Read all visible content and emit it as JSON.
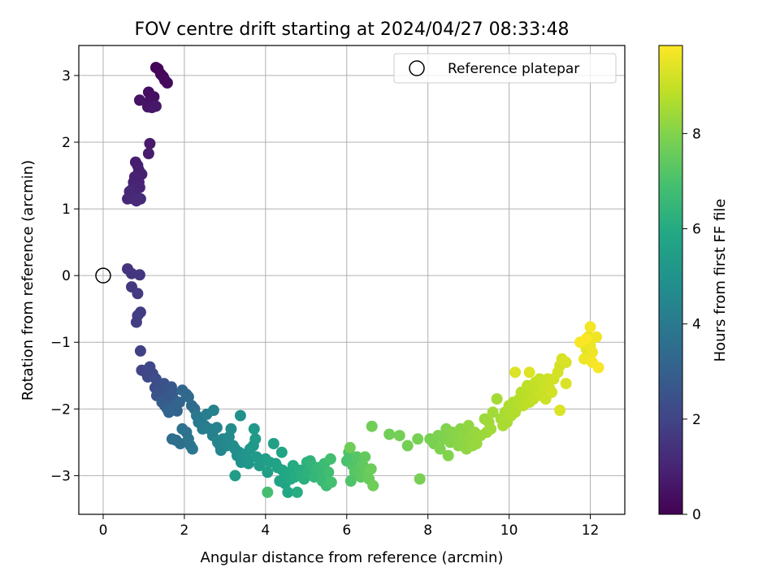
{
  "chart_data": {
    "type": "scatter",
    "title": "FOV centre drift starting at 2024/04/27 08:33:48",
    "xlabel": "Angular distance from reference (arcmin)",
    "ylabel": "Rotation from reference (arcmin)",
    "xlim": [
      -0.6,
      12.85
    ],
    "ylim": [
      -3.58,
      3.45
    ],
    "xticks": [
      0,
      2,
      4,
      6,
      8,
      10,
      12
    ],
    "yticks": [
      -3,
      -2,
      -1,
      0,
      1,
      2,
      3
    ],
    "grid": true,
    "legend": {
      "location": "upper right",
      "entries": [
        "Reference platepar"
      ]
    },
    "reference_point": {
      "x": 0,
      "y": 0,
      "marker": "open circle"
    },
    "colorbar": {
      "label": "Hours from first FF file",
      "range": [
        0,
        9.85
      ],
      "ticks": [
        0,
        2,
        4,
        6,
        8
      ],
      "colormap": "viridis"
    },
    "points": [
      [
        1.3,
        3.12,
        0.05
      ],
      [
        1.35,
        3.1,
        0.1
      ],
      [
        1.42,
        3.02,
        0.15
      ],
      [
        1.48,
        2.98,
        0.2
      ],
      [
        1.52,
        2.93,
        0.25
      ],
      [
        1.58,
        2.89,
        0.3
      ],
      [
        1.12,
        2.75,
        0.35
      ],
      [
        1.25,
        2.68,
        0.4
      ],
      [
        1.15,
        2.62,
        0.45
      ],
      [
        0.9,
        2.63,
        0.5
      ],
      [
        1.1,
        2.53,
        0.55
      ],
      [
        1.2,
        2.52,
        0.6
      ],
      [
        1.3,
        2.54,
        0.62
      ],
      [
        1.15,
        1.98,
        0.7
      ],
      [
        1.12,
        1.83,
        0.75
      ],
      [
        0.8,
        1.7,
        0.8
      ],
      [
        0.85,
        1.65,
        0.82
      ],
      [
        0.88,
        1.58,
        0.85
      ],
      [
        0.95,
        1.52,
        0.87
      ],
      [
        0.78,
        1.48,
        0.9
      ],
      [
        0.82,
        1.45,
        0.92
      ],
      [
        0.75,
        1.4,
        0.95
      ],
      [
        0.88,
        1.4,
        0.97
      ],
      [
        0.9,
        1.32,
        1.0
      ],
      [
        0.72,
        1.3,
        1.02
      ],
      [
        0.78,
        1.25,
        1.05
      ],
      [
        0.65,
        1.26,
        1.07
      ],
      [
        0.7,
        1.2,
        1.1
      ],
      [
        0.6,
        1.15,
        1.12
      ],
      [
        0.75,
        1.15,
        1.14
      ],
      [
        0.82,
        1.12,
        1.17
      ],
      [
        0.92,
        1.15,
        1.2
      ],
      [
        0.6,
        0.1,
        1.45
      ],
      [
        0.7,
        0.03,
        1.5
      ],
      [
        0.9,
        0.01,
        1.55
      ],
      [
        0.7,
        -0.17,
        1.6
      ],
      [
        0.85,
        -0.27,
        1.65
      ],
      [
        0.92,
        -0.55,
        1.7
      ],
      [
        0.85,
        -0.6,
        1.75
      ],
      [
        0.82,
        -0.7,
        1.8
      ],
      [
        0.92,
        -1.13,
        1.9
      ],
      [
        0.95,
        -1.42,
        2.0
      ],
      [
        1.05,
        -1.45,
        2.05
      ],
      [
        1.15,
        -1.37,
        2.1
      ],
      [
        1.1,
        -1.52,
        2.15
      ],
      [
        1.22,
        -1.47,
        2.2
      ],
      [
        1.3,
        -1.55,
        2.25
      ],
      [
        1.35,
        -1.62,
        2.3
      ],
      [
        1.28,
        -1.68,
        2.35
      ],
      [
        1.4,
        -1.7,
        2.4
      ],
      [
        1.45,
        -1.75,
        2.45
      ],
      [
        1.32,
        -1.8,
        2.5
      ],
      [
        1.5,
        -1.62,
        2.55
      ],
      [
        1.55,
        -1.8,
        2.6
      ],
      [
        1.6,
        -1.82,
        2.65
      ],
      [
        1.68,
        -1.67,
        2.7
      ],
      [
        1.72,
        -1.75,
        2.75
      ],
      [
        1.78,
        -1.88,
        2.8
      ],
      [
        1.45,
        -1.9,
        2.85
      ],
      [
        1.52,
        -1.95,
        2.9
      ],
      [
        1.58,
        -2.0,
        2.95
      ],
      [
        1.7,
        -2.0,
        3.0
      ],
      [
        1.75,
        -1.95,
        3.05
      ],
      [
        1.82,
        -2.03,
        3.1
      ],
      [
        1.88,
        -1.9,
        3.15
      ],
      [
        1.62,
        -2.05,
        3.2
      ],
      [
        1.95,
        -1.72,
        3.25
      ],
      [
        2.05,
        -1.78,
        3.3
      ],
      [
        2.1,
        -1.82,
        3.35
      ],
      [
        2.18,
        -1.95,
        3.4
      ],
      [
        2.25,
        -2.0,
        3.45
      ],
      [
        1.7,
        -2.45,
        3.5
      ],
      [
        1.8,
        -2.47,
        3.55
      ],
      [
        1.9,
        -2.52,
        3.6
      ],
      [
        1.95,
        -2.3,
        3.65
      ],
      [
        2.05,
        -2.35,
        3.7
      ],
      [
        2.1,
        -2.45,
        3.75
      ],
      [
        2.15,
        -2.55,
        3.8
      ],
      [
        2.2,
        -2.6,
        3.85
      ],
      [
        2.3,
        -2.1,
        3.9
      ],
      [
        2.35,
        -2.2,
        3.95
      ],
      [
        2.4,
        -2.15,
        4.0
      ],
      [
        2.45,
        -2.3,
        4.05
      ],
      [
        2.5,
        -2.25,
        4.1
      ],
      [
        2.55,
        -2.08,
        4.15
      ],
      [
        2.62,
        -2.3,
        4.2
      ],
      [
        2.7,
        -2.4,
        4.25
      ],
      [
        2.72,
        -2.02,
        4.3
      ],
      [
        2.8,
        -2.28,
        4.35
      ],
      [
        2.82,
        -2.5,
        4.4
      ],
      [
        2.88,
        -2.55,
        4.45
      ],
      [
        2.9,
        -2.62,
        4.5
      ],
      [
        2.95,
        -2.45,
        4.55
      ],
      [
        3.05,
        -2.55,
        4.6
      ],
      [
        3.1,
        -2.42,
        4.65
      ],
      [
        3.15,
        -2.3,
        4.7
      ],
      [
        3.2,
        -2.55,
        4.75
      ],
      [
        3.25,
        -2.6,
        4.8
      ],
      [
        3.3,
        -2.7,
        4.85
      ],
      [
        3.35,
        -2.65,
        4.9
      ],
      [
        3.38,
        -2.1,
        4.92
      ],
      [
        3.4,
        -2.8,
        4.95
      ],
      [
        3.45,
        -2.72,
        5.0
      ],
      [
        3.5,
        -2.68,
        5.05
      ],
      [
        3.55,
        -2.75,
        5.1
      ],
      [
        3.58,
        -2.82,
        5.15
      ],
      [
        3.62,
        -2.6,
        5.2
      ],
      [
        3.7,
        -2.55,
        5.25
      ],
      [
        3.72,
        -2.3,
        5.28
      ],
      [
        3.75,
        -2.45,
        5.3
      ],
      [
        3.78,
        -2.72,
        5.35
      ],
      [
        3.25,
        -3.0,
        5.38
      ],
      [
        3.85,
        -2.85,
        5.4
      ],
      [
        4.0,
        -2.75,
        5.45
      ],
      [
        4.05,
        -2.95,
        5.5
      ],
      [
        4.1,
        -2.8,
        5.55
      ],
      [
        4.2,
        -2.52,
        5.58
      ],
      [
        4.25,
        -2.82,
        5.6
      ],
      [
        4.3,
        -2.88,
        5.65
      ],
      [
        4.35,
        -3.08,
        5.7
      ],
      [
        4.4,
        -2.65,
        5.72
      ],
      [
        4.42,
        -2.92,
        5.75
      ],
      [
        4.48,
        -3.12,
        5.8
      ],
      [
        4.5,
        -2.98,
        5.85
      ],
      [
        4.55,
        -3.25,
        5.88
      ],
      [
        4.6,
        -2.95,
        5.9
      ],
      [
        4.62,
        -3.05,
        5.95
      ],
      [
        4.68,
        -2.85,
        6.0
      ],
      [
        4.72,
        -3.02,
        6.05
      ],
      [
        4.78,
        -3.25,
        6.08
      ],
      [
        4.85,
        -2.92,
        6.1
      ],
      [
        4.88,
        -3.0,
        6.15
      ],
      [
        4.95,
        -3.05,
        6.2
      ],
      [
        5.02,
        -2.8,
        6.25
      ],
      [
        5.05,
        -2.95,
        6.3
      ],
      [
        5.1,
        -2.78,
        6.35
      ],
      [
        5.15,
        -2.85,
        6.4
      ],
      [
        5.2,
        -3.02,
        6.45
      ],
      [
        5.25,
        -2.92,
        6.5
      ],
      [
        5.3,
        -2.88,
        6.55
      ],
      [
        5.38,
        -2.95,
        6.6
      ],
      [
        5.4,
        -3.08,
        6.65
      ],
      [
        5.45,
        -2.82,
        6.7
      ],
      [
        5.5,
        -3.15,
        6.75
      ],
      [
        5.55,
        -2.95,
        6.8
      ],
      [
        5.6,
        -2.75,
        6.85
      ],
      [
        5.62,
        -3.1,
        6.9
      ],
      [
        4.05,
        -3.25,
        6.92
      ],
      [
        6.0,
        -2.78,
        7.0
      ],
      [
        6.05,
        -2.65,
        7.05
      ],
      [
        6.1,
        -3.08,
        7.1
      ],
      [
        6.15,
        -2.85,
        7.15
      ],
      [
        6.2,
        -2.95,
        7.2
      ],
      [
        6.25,
        -2.72,
        7.25
      ],
      [
        6.3,
        -2.9,
        7.3
      ],
      [
        6.35,
        -3.02,
        7.35
      ],
      [
        6.4,
        -2.85,
        7.4
      ],
      [
        6.45,
        -2.72,
        7.45
      ],
      [
        6.5,
        -2.95,
        7.5
      ],
      [
        6.55,
        -3.05,
        7.55
      ],
      [
        6.6,
        -2.9,
        7.6
      ],
      [
        6.65,
        -3.15,
        7.65
      ],
      [
        6.08,
        -2.58,
        7.68
      ],
      [
        6.62,
        -2.26,
        7.7
      ],
      [
        7.05,
        -2.38,
        7.72
      ],
      [
        7.3,
        -2.4,
        7.75
      ],
      [
        7.5,
        -2.55,
        7.78
      ],
      [
        7.75,
        -2.45,
        7.8
      ],
      [
        7.8,
        -3.05,
        7.82
      ],
      [
        8.05,
        -2.45,
        7.85
      ],
      [
        8.15,
        -2.52,
        7.88
      ],
      [
        8.25,
        -2.4,
        7.9
      ],
      [
        8.3,
        -2.6,
        7.92
      ],
      [
        8.4,
        -2.45,
        7.95
      ],
      [
        8.45,
        -2.3,
        7.98
      ],
      [
        8.5,
        -2.7,
        8.0
      ],
      [
        8.55,
        -2.5,
        8.02
      ],
      [
        8.6,
        -2.35,
        8.05
      ],
      [
        8.7,
        -2.42,
        8.08
      ],
      [
        8.75,
        -2.55,
        8.1
      ],
      [
        8.8,
        -2.3,
        8.12
      ],
      [
        8.85,
        -2.48,
        8.15
      ],
      [
        8.9,
        -2.38,
        8.18
      ],
      [
        8.95,
        -2.6,
        8.2
      ],
      [
        9.0,
        -2.25,
        8.22
      ],
      [
        9.05,
        -2.45,
        8.25
      ],
      [
        9.1,
        -2.55,
        8.28
      ],
      [
        9.15,
        -2.35,
        8.3
      ],
      [
        9.2,
        -2.52,
        8.32
      ],
      [
        9.3,
        -2.4,
        8.35
      ],
      [
        9.4,
        -2.15,
        8.38
      ],
      [
        9.45,
        -2.35,
        8.4
      ],
      [
        9.5,
        -2.2,
        8.42
      ],
      [
        9.55,
        -2.3,
        8.45
      ],
      [
        9.6,
        -2.05,
        8.48
      ],
      [
        9.7,
        -1.85,
        8.5
      ],
      [
        9.8,
        -2.15,
        8.52
      ],
      [
        9.85,
        -2.25,
        8.55
      ],
      [
        9.9,
        -2.05,
        8.58
      ],
      [
        9.95,
        -2.2,
        8.6
      ],
      [
        10.0,
        -1.95,
        8.62
      ],
      [
        10.05,
        -2.1,
        8.65
      ],
      [
        10.1,
        -1.9,
        8.68
      ],
      [
        10.15,
        -2.05,
        8.7
      ],
      [
        10.2,
        -1.98,
        8.72
      ],
      [
        10.25,
        -1.85,
        8.75
      ],
      [
        10.3,
        -1.75,
        8.78
      ],
      [
        10.35,
        -1.95,
        8.8
      ],
      [
        10.4,
        -1.8,
        8.82
      ],
      [
        10.45,
        -1.65,
        8.85
      ],
      [
        10.5,
        -1.9,
        8.88
      ],
      [
        10.55,
        -1.7,
        8.9
      ],
      [
        10.6,
        -1.85,
        8.92
      ],
      [
        10.65,
        -1.6,
        8.95
      ],
      [
        10.7,
        -1.75,
        8.98
      ],
      [
        10.75,
        -1.55,
        9.0
      ],
      [
        10.8,
        -1.8,
        9.02
      ],
      [
        10.85,
        -1.65,
        9.05
      ],
      [
        10.9,
        -1.85,
        9.08
      ],
      [
        10.95,
        -1.55,
        9.1
      ],
      [
        11.0,
        -1.7,
        9.12
      ],
      [
        11.05,
        -1.75,
        9.15
      ],
      [
        11.1,
        -1.55,
        9.18
      ],
      [
        11.2,
        -1.45,
        9.2
      ],
      [
        11.25,
        -1.35,
        9.22
      ],
      [
        11.3,
        -1.25,
        9.25
      ],
      [
        11.4,
        -1.3,
        9.28
      ],
      [
        11.4,
        -1.62,
        9.3
      ],
      [
        11.25,
        -2.02,
        9.32
      ],
      [
        10.15,
        -1.45,
        9.34
      ],
      [
        10.5,
        -1.45,
        9.36
      ],
      [
        11.85,
        -1.0,
        9.4
      ],
      [
        11.9,
        -1.1,
        9.45
      ],
      [
        11.95,
        -0.92,
        9.5
      ],
      [
        12.0,
        -1.05,
        9.55
      ],
      [
        12.05,
        -1.15,
        9.6
      ],
      [
        11.85,
        -1.25,
        9.62
      ],
      [
        12.15,
        -0.92,
        9.65
      ],
      [
        12.0,
        -0.77,
        9.7
      ],
      [
        12.05,
        -1.3,
        9.72
      ],
      [
        12.2,
        -1.38,
        9.75
      ],
      [
        11.75,
        -1.0,
        9.78
      ],
      [
        11.9,
        -0.95,
        9.8
      ]
    ]
  }
}
